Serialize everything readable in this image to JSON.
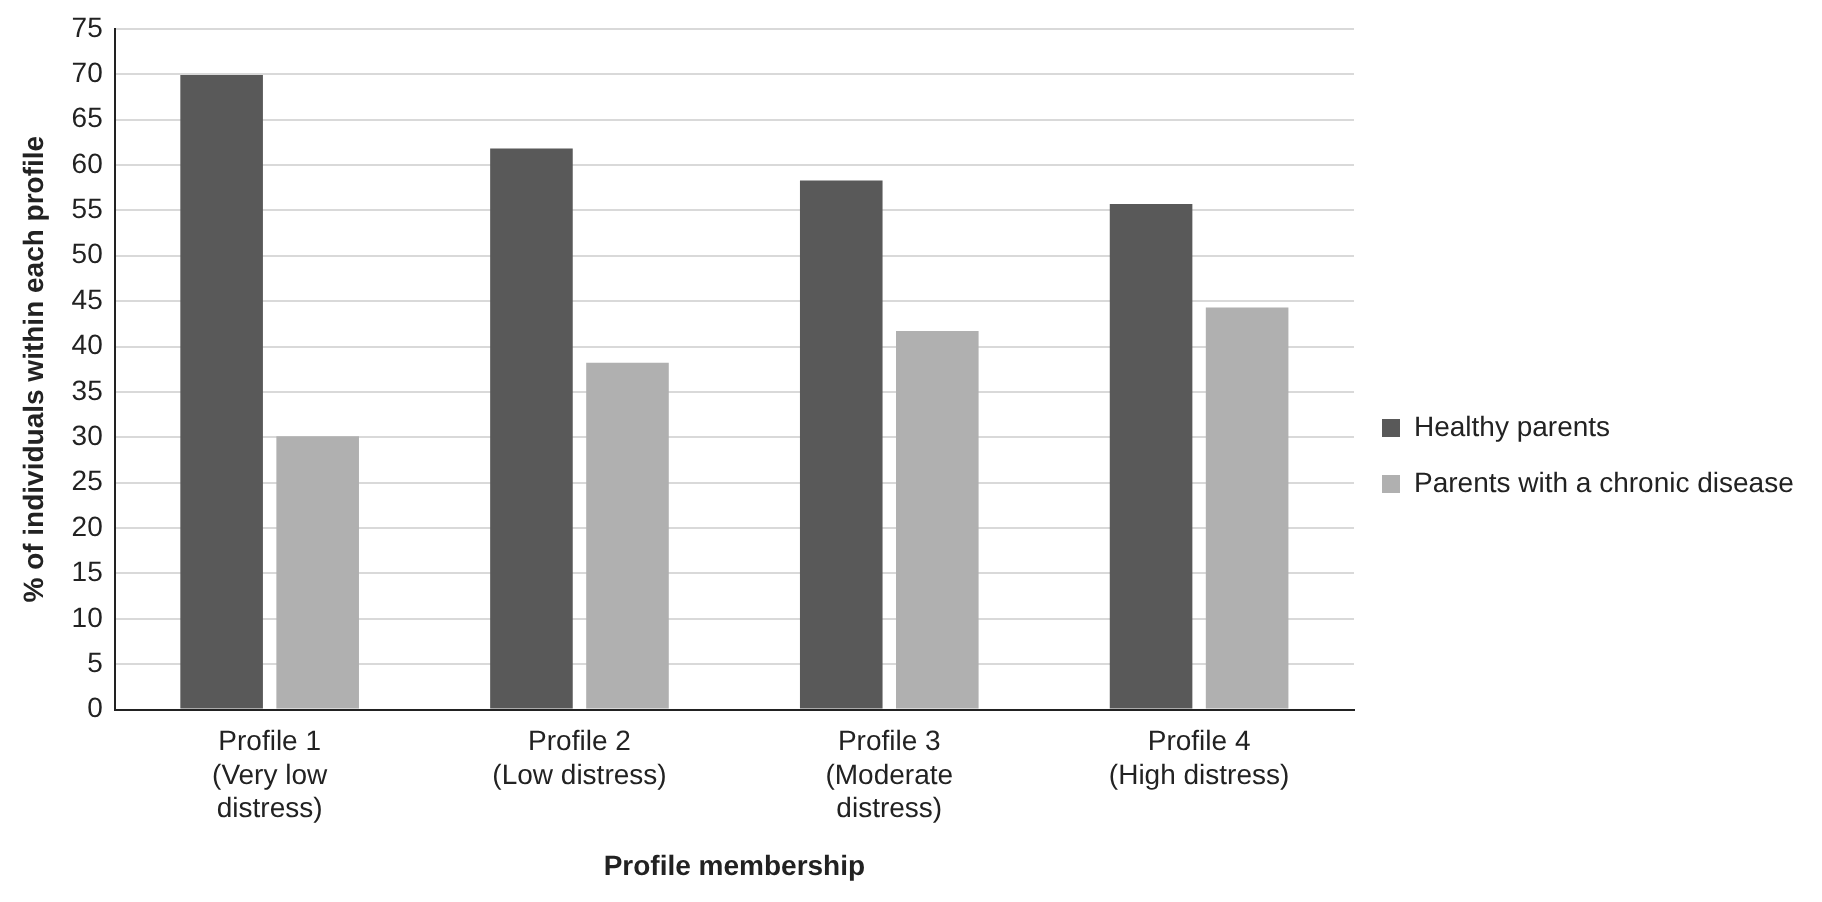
{
  "chart_data": {
    "type": "bar",
    "xlabel": "Profile membership",
    "ylabel": "% of individuals within each profile",
    "categories": [
      "Profile 1 (Very low distress)",
      "Profile 2 (Low distress)",
      "Profile 3 (Moderate distress)",
      "Profile 4 (High distress)"
    ],
    "series": [
      {
        "name": "Healthy parents",
        "color": "#595959",
        "values": [
          69.9,
          61.8,
          58.3,
          55.7
        ]
      },
      {
        "name": "Parents with a chronic disease",
        "color": "#b0b0b0",
        "values": [
          30.1,
          38.2,
          41.7,
          44.3
        ]
      }
    ],
    "ylim": [
      0,
      75
    ],
    "yticks": [
      0,
      5,
      10,
      15,
      20,
      25,
      30,
      35,
      40,
      45,
      50,
      55,
      60,
      65,
      70,
      75
    ],
    "grid": "y",
    "legend": "right"
  }
}
